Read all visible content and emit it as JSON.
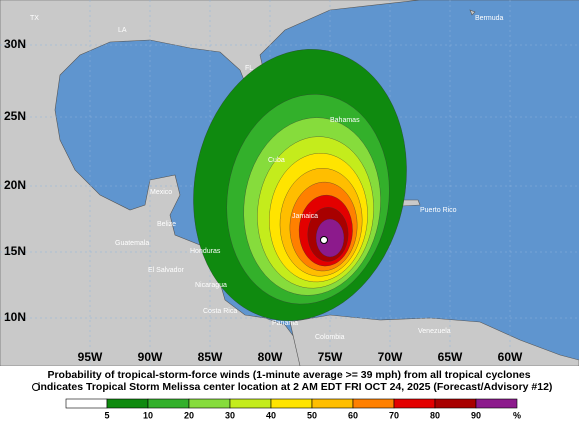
{
  "map": {
    "lat_labels": [
      "30N",
      "25N",
      "20N",
      "15N",
      "10N"
    ],
    "lon_labels": [
      "95W",
      "90W",
      "85W",
      "80W",
      "75W",
      "70W",
      "65W",
      "60W"
    ],
    "places": [
      "TX",
      "LA",
      "FL",
      "Bermuda",
      "Mexico",
      "Bahamas",
      "Cuba",
      "Belize",
      "Guatemala",
      "Honduras",
      "El Salvador",
      "Nicaragua",
      "Costa Rica",
      "Panama",
      "Colombia",
      "Venezuela",
      "Puerto Rico",
      "Jamaica"
    ]
  },
  "caption": {
    "line1": "Probability of tropical-storm-force winds (1-minute average >= 39 mph) from all tropical cyclones",
    "line2": "indicates Tropical Storm Melissa center location at 2 AM EDT FRI OCT 24, 2025 (Forecast/Advisory #12)"
  },
  "legend": {
    "ticks": [
      5,
      10,
      20,
      30,
      40,
      50,
      60,
      70,
      80,
      90
    ],
    "unit": "%",
    "colors": [
      "#ffffff",
      "#0f8a0f",
      "#33b02b",
      "#86dc3c",
      "#c4ec1c",
      "#ffe400",
      "#ffbe00",
      "#ff8000",
      "#e30000",
      "#a80000",
      "#8c1a8c"
    ]
  }
}
